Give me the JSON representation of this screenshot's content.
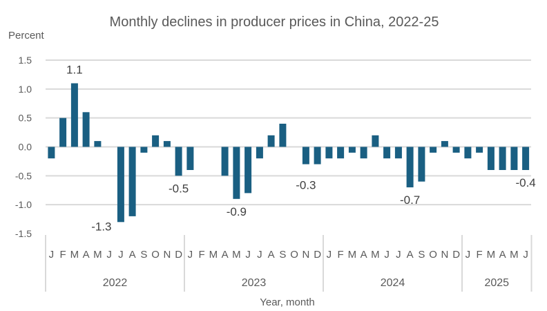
{
  "chart_data": {
    "type": "bar",
    "title": "Monthly declines in producer prices in China, 2022-25",
    "ylabel": "Percent",
    "xlabel": "Year, month",
    "ylim": [
      -1.5,
      1.5
    ],
    "yticks": [
      1.5,
      1.0,
      0.5,
      0.0,
      -0.5,
      -1.0,
      -1.5
    ],
    "ytick_labels": [
      "1.5",
      "1.0",
      "0.5",
      "0.0",
      "-0.5",
      "-1.0",
      "-1.5"
    ],
    "grid": true,
    "bar_color": "#1a5f82",
    "years": [
      {
        "label": "2022",
        "months": [
          "J",
          "F",
          "M",
          "A",
          "M",
          "J",
          "J",
          "A",
          "S",
          "O",
          "N",
          "D"
        ]
      },
      {
        "label": "2023",
        "months": [
          "J",
          "F",
          "M",
          "A",
          "M",
          "J",
          "J",
          "A",
          "S",
          "O",
          "N",
          "D"
        ]
      },
      {
        "label": "2024",
        "months": [
          "J",
          "F",
          "M",
          "A",
          "M",
          "J",
          "J",
          "A",
          "S",
          "O",
          "N",
          "D"
        ]
      },
      {
        "label": "2025",
        "months": [
          "J",
          "F",
          "M",
          "A",
          "M",
          "J"
        ]
      }
    ],
    "values": [
      -0.2,
      0.5,
      1.1,
      0.6,
      0.1,
      0.0,
      -1.3,
      -1.2,
      -0.1,
      0.2,
      0.1,
      -0.5,
      -0.4,
      0.0,
      0.0,
      -0.5,
      -0.9,
      -0.8,
      -0.2,
      0.2,
      0.4,
      0.0,
      -0.3,
      -0.3,
      -0.2,
      -0.2,
      -0.1,
      -0.2,
      0.2,
      -0.2,
      -0.2,
      -0.7,
      -0.6,
      -0.1,
      0.1,
      -0.1,
      -0.2,
      -0.1,
      -0.4,
      -0.4,
      -0.4,
      -0.4
    ],
    "annotations": [
      {
        "index": 2,
        "text": "1.1",
        "position": "above"
      },
      {
        "index": 6,
        "text": "-1.3",
        "position": "below-left"
      },
      {
        "index": 11,
        "text": "-0.5",
        "position": "below"
      },
      {
        "index": 16,
        "text": "-0.9",
        "position": "below"
      },
      {
        "index": 22,
        "text": "-0.3",
        "position": "below"
      },
      {
        "index": 31,
        "text": "-0.7",
        "position": "below"
      },
      {
        "index": 41,
        "text": "-0.4",
        "position": "below"
      }
    ]
  }
}
